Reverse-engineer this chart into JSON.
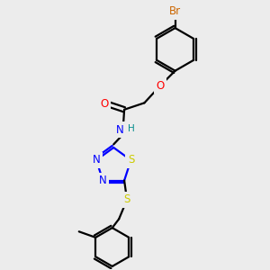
{
  "background_color": "#ececec",
  "bond_color": "#000000",
  "line_width": 1.6,
  "atom_colors": {
    "Br": "#cc6600",
    "O": "#ff0000",
    "N": "#0000ff",
    "S": "#cccc00",
    "H": "#008b8b",
    "C": "#000000"
  },
  "font_size": 8.5,
  "figsize": [
    3.0,
    3.0
  ],
  "dpi": 100
}
